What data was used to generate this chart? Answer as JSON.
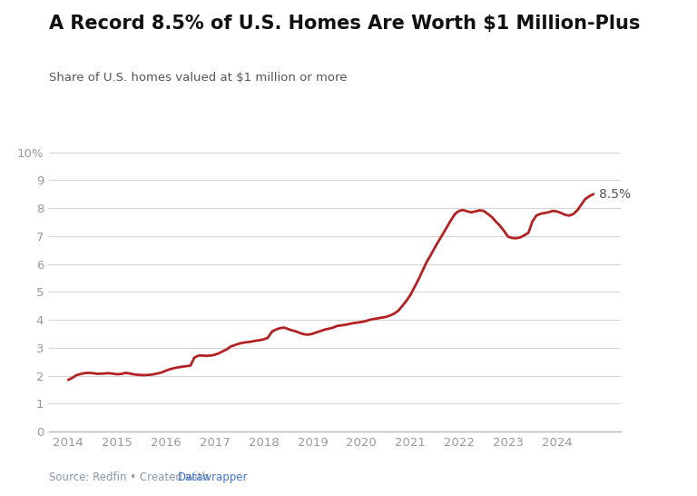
{
  "title": "A Record 8.5% of U.S. Homes Are Worth $1 Million-Plus",
  "subtitle": "Share of U.S. homes valued at $1 million or more",
  "source_plain": "Source: Redfin • Created with ",
  "source_link": "Datawrapper",
  "line_color": "#b22222",
  "background_color": "#ffffff",
  "annotation_label": "8.5%",
  "annotation_color": "#555555",
  "yticks": [
    0,
    1,
    2,
    3,
    4,
    5,
    6,
    7,
    8,
    9,
    10
  ],
  "ytick_labels": [
    "0",
    "1",
    "2",
    "3",
    "4",
    "5",
    "6",
    "7",
    "8",
    "9",
    "10%"
  ],
  "ylim": [
    0,
    10.3
  ],
  "xlim_start": 2013.6,
  "xlim_end": 2025.3,
  "xticks": [
    2014,
    2015,
    2016,
    2017,
    2018,
    2019,
    2020,
    2021,
    2022,
    2023,
    2024
  ],
  "x": [
    2014.0,
    2014.08,
    2014.17,
    2014.25,
    2014.33,
    2014.42,
    2014.5,
    2014.58,
    2014.67,
    2014.75,
    2014.83,
    2014.92,
    2015.0,
    2015.08,
    2015.17,
    2015.25,
    2015.33,
    2015.42,
    2015.5,
    2015.58,
    2015.67,
    2015.75,
    2015.83,
    2015.92,
    2016.0,
    2016.08,
    2016.17,
    2016.25,
    2016.33,
    2016.42,
    2016.5,
    2016.58,
    2016.67,
    2016.75,
    2016.83,
    2016.92,
    2017.0,
    2017.08,
    2017.17,
    2017.25,
    2017.33,
    2017.42,
    2017.5,
    2017.58,
    2017.67,
    2017.75,
    2017.83,
    2017.92,
    2018.0,
    2018.08,
    2018.17,
    2018.25,
    2018.33,
    2018.42,
    2018.5,
    2018.58,
    2018.67,
    2018.75,
    2018.83,
    2018.92,
    2019.0,
    2019.08,
    2019.17,
    2019.25,
    2019.33,
    2019.42,
    2019.5,
    2019.58,
    2019.67,
    2019.75,
    2019.83,
    2019.92,
    2020.0,
    2020.08,
    2020.17,
    2020.25,
    2020.33,
    2020.42,
    2020.5,
    2020.58,
    2020.67,
    2020.75,
    2020.83,
    2020.92,
    2021.0,
    2021.08,
    2021.17,
    2021.25,
    2021.33,
    2021.42,
    2021.5,
    2021.58,
    2021.67,
    2021.75,
    2021.83,
    2021.92,
    2022.0,
    2022.08,
    2022.17,
    2022.25,
    2022.33,
    2022.42,
    2022.5,
    2022.58,
    2022.67,
    2022.75,
    2022.83,
    2022.92,
    2023.0,
    2023.08,
    2023.17,
    2023.25,
    2023.33,
    2023.42,
    2023.5,
    2023.58,
    2023.67,
    2023.75,
    2023.83,
    2023.92,
    2024.0,
    2024.08,
    2024.17,
    2024.25,
    2024.33,
    2024.42,
    2024.5,
    2024.58,
    2024.67,
    2024.75
  ],
  "y": [
    1.85,
    1.92,
    2.02,
    2.06,
    2.09,
    2.1,
    2.09,
    2.07,
    2.07,
    2.08,
    2.09,
    2.07,
    2.05,
    2.06,
    2.1,
    2.08,
    2.05,
    2.03,
    2.02,
    2.02,
    2.03,
    2.05,
    2.08,
    2.12,
    2.18,
    2.23,
    2.27,
    2.3,
    2.32,
    2.34,
    2.36,
    2.65,
    2.72,
    2.72,
    2.71,
    2.72,
    2.75,
    2.8,
    2.88,
    2.95,
    3.05,
    3.1,
    3.15,
    3.18,
    3.2,
    3.22,
    3.25,
    3.27,
    3.3,
    3.35,
    3.58,
    3.65,
    3.7,
    3.72,
    3.67,
    3.62,
    3.58,
    3.52,
    3.48,
    3.47,
    3.5,
    3.55,
    3.6,
    3.65,
    3.68,
    3.72,
    3.78,
    3.8,
    3.82,
    3.85,
    3.88,
    3.9,
    3.92,
    3.95,
    4.0,
    4.03,
    4.05,
    4.08,
    4.1,
    4.15,
    4.22,
    4.32,
    4.48,
    4.68,
    4.88,
    5.15,
    5.45,
    5.75,
    6.05,
    6.32,
    6.58,
    6.82,
    7.08,
    7.32,
    7.56,
    7.8,
    7.9,
    7.93,
    7.88,
    7.85,
    7.88,
    7.92,
    7.9,
    7.8,
    7.68,
    7.52,
    7.38,
    7.18,
    6.98,
    6.93,
    6.92,
    6.95,
    7.02,
    7.12,
    7.52,
    7.73,
    7.8,
    7.82,
    7.85,
    7.9,
    7.88,
    7.83,
    7.76,
    7.73,
    7.78,
    7.92,
    8.12,
    8.32,
    8.43,
    8.5
  ]
}
